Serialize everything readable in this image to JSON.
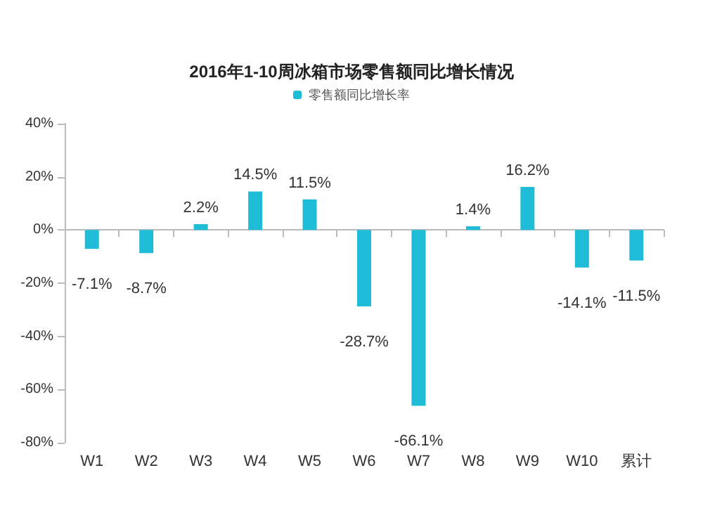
{
  "chart_data": {
    "type": "bar",
    "title": "2016年1-10周冰箱市场零售额同比增长情况",
    "categories": [
      "W1",
      "W2",
      "W3",
      "W4",
      "W5",
      "W6",
      "W7",
      "W8",
      "W9",
      "W10",
      "累计"
    ],
    "series": [
      {
        "name": "零售额同比增长率",
        "color": "#1ebcd6",
        "values": [
          -7.1,
          -8.7,
          2.2,
          14.5,
          11.5,
          -28.7,
          -66.1,
          1.4,
          16.2,
          -14.1,
          -11.5
        ],
        "value_labels": [
          "-7.1%",
          "-8.7%",
          "2.2%",
          "14.5%",
          "11.5%",
          "-28.7%",
          "-66.1%",
          "1.4%",
          "16.2%",
          "-14.1%",
          "-11.5%"
        ]
      }
    ],
    "ylim": [
      -80,
      40
    ],
    "yticks": [
      {
        "value": -80,
        "label": "-80%"
      },
      {
        "value": -60,
        "label": "-60%"
      },
      {
        "value": -40,
        "label": "-40%"
      },
      {
        "value": -20,
        "label": "-20%"
      },
      {
        "value": 0,
        "label": "0%"
      },
      {
        "value": 20,
        "label": "20%"
      },
      {
        "value": 40,
        "label": "40%"
      }
    ],
    "legend": "top"
  }
}
